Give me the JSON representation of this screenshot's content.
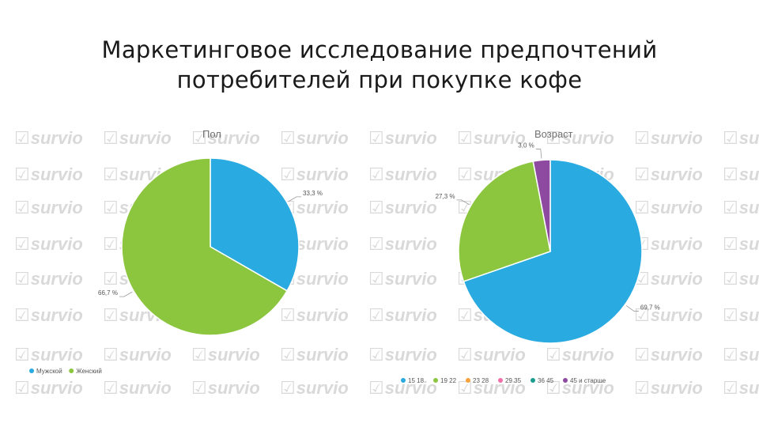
{
  "slide": {
    "title_line1": "Маркетинговое исследование предпочтений",
    "title_line2": "потребителей при покупке кофе"
  },
  "watermark": {
    "text": "survio",
    "icon": "checkmark-icon",
    "color": "#d9d9d9"
  },
  "chart_data": [
    {
      "type": "pie",
      "title": "Пол",
      "legend_position": "bottom-left",
      "series": [
        {
          "name": "Мужской",
          "value": 33.3,
          "label": "33,3 %",
          "color": "#29aae1"
        },
        {
          "name": "Женский",
          "value": 66.7,
          "label": "66,7 %",
          "color": "#8cc63f"
        }
      ]
    },
    {
      "type": "pie",
      "title": "Возраст",
      "legend_position": "bottom",
      "series": [
        {
          "name": "15 18",
          "value": 69.7,
          "label": "69,7 %",
          "color": "#29aae1"
        },
        {
          "name": "19 22",
          "value": 27.3,
          "label": "27,3 %",
          "color": "#8cc63f"
        },
        {
          "name": "23 28",
          "value": 0,
          "label": "",
          "color": "#f7a23b"
        },
        {
          "name": "29 35",
          "value": 0,
          "label": "",
          "color": "#f06fa8"
        },
        {
          "name": "36 45",
          "value": 0,
          "label": "",
          "color": "#1a9d8f"
        },
        {
          "name": "45 и старше",
          "value": 3.0,
          "label": "3,0 %",
          "color": "#8e4aa0"
        }
      ]
    }
  ]
}
